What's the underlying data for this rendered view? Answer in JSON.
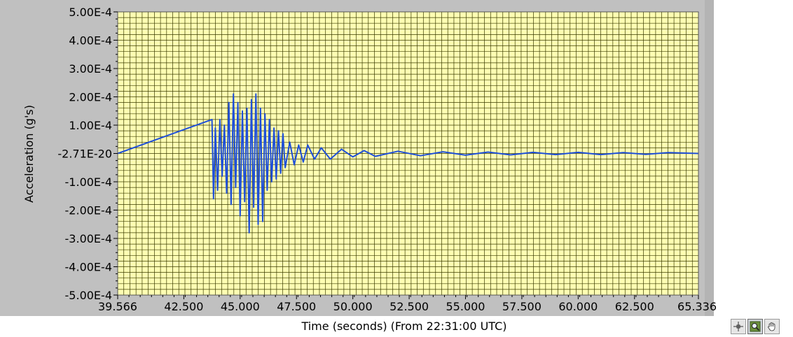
{
  "chart_data": {
    "type": "line",
    "xlabel": "Time (seconds) (From 22:31:00 UTC)",
    "ylabel": "Acceleration (g's)",
    "xlim": [
      39.566,
      65.336
    ],
    "ylim": [
      -0.0005,
      0.0005
    ],
    "x_tick_labels": [
      "39.566",
      "42.500",
      "45.000",
      "47.500",
      "50.000",
      "52.500",
      "55.000",
      "57.500",
      "60.000",
      "62.500",
      "65.336"
    ],
    "x_tick_values": [
      39.566,
      42.5,
      45,
      47.5,
      50,
      52.5,
      55,
      57.5,
      60,
      62.5,
      65.336
    ],
    "y_tick_labels": [
      "5.00E-4",
      "4.00E-4",
      "3.00E-4",
      "2.00E-4",
      "1.00E-4",
      "-2.71E-20",
      "-1.00E-4",
      "-2.00E-4",
      "-3.00E-4",
      "-4.00E-4",
      "-5.00E-4"
    ],
    "y_tick_values": [
      0.0005,
      0.0004,
      0.0003,
      0.0002,
      0.0001,
      0,
      -0.0001,
      -0.0002,
      -0.0003,
      -0.0004,
      -0.0005
    ],
    "grid": true,
    "colors": {
      "plot_background": "#ffffb3",
      "grid_line": "#3a3a00",
      "trace": "#1f4fd8",
      "frame": "#c0c0c0"
    },
    "series": [
      {
        "x": [
          39.566,
          43.75,
          43.82,
          43.9,
          44.0,
          44.1,
          44.2,
          44.3,
          44.4,
          44.5,
          44.6,
          44.7,
          44.8,
          44.9,
          45.0,
          45.1,
          45.2,
          45.3,
          45.4,
          45.5,
          45.6,
          45.7,
          45.8,
          45.9,
          46.0,
          46.1,
          46.2,
          46.3,
          46.4,
          46.5,
          46.6,
          46.7,
          46.8,
          46.9,
          47.0,
          47.2,
          47.4,
          47.6,
          47.8,
          48.0,
          48.3,
          48.6,
          49.0,
          49.5,
          50.0,
          50.5,
          51.0,
          52.0,
          53.0,
          54.0,
          55.0,
          56.0,
          57.0,
          58.0,
          59.0,
          60.0,
          61.0,
          62.0,
          63.0,
          64.0,
          65.336
        ],
        "y": [
          0,
          0.00012,
          -0.00016,
          9e-05,
          -0.00013,
          0.00012,
          -8e-05,
          0.0001,
          -0.00014,
          0.00018,
          -0.00018,
          0.00021,
          -0.00012,
          0.00018,
          -0.00022,
          0.00015,
          -0.00017,
          0.00016,
          -0.00028,
          0.00019,
          -0.00019,
          0.00021,
          -0.00025,
          0.00016,
          -0.00024,
          0.00014,
          -0.00013,
          0.00012,
          -0.0001,
          9e-05,
          -9e-05,
          8e-05,
          -7e-05,
          7e-05,
          -5e-05,
          4e-05,
          -4e-05,
          3e-05,
          -3e-05,
          3e-05,
          -2e-05,
          2e-05,
          -2e-05,
          1.5e-05,
          -1.2e-05,
          1e-05,
          -1e-05,
          8e-06,
          -8e-06,
          6e-06,
          -6e-06,
          5e-06,
          -5e-06,
          4e-06,
          -4e-06,
          4e-06,
          -4e-06,
          3e-06,
          -3e-06,
          3e-06,
          0
        ]
      }
    ]
  },
  "toolbar": {
    "tools": [
      {
        "icon": "cursor-crosshair-icon"
      },
      {
        "icon": "zoom-icon"
      },
      {
        "icon": "pan-hand-icon"
      }
    ]
  }
}
